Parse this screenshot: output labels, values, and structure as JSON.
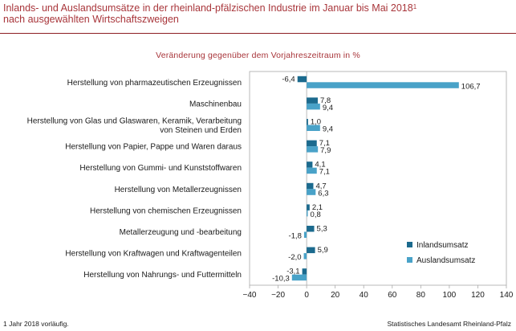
{
  "header": {
    "title_line1": "Inlands- und Auslandsumsätze in der rheinland-pfälzischen Industrie im Januar bis Mai 2018",
    "title_sup": "1",
    "title_line2": "nach ausgewählten Wirtschaftszweigen"
  },
  "footer": {
    "footnote": "1 Jahr 2018 vorläufig.",
    "source": "Statistisches Landesamt Rheinland-Pfalz"
  },
  "colors": {
    "title": "#a8353a",
    "inland": "#1b6a8e",
    "ausland": "#49a2c8"
  },
  "chart_data": {
    "type": "bar",
    "orientation": "horizontal",
    "title": "Veränderung gegenüber dem Vorjahreszeitraum in %",
    "xlim": [
      -40,
      140
    ],
    "xticks": [
      -40,
      -20,
      0,
      20,
      40,
      60,
      80,
      100,
      120,
      140
    ],
    "legend_position": "bottom-right",
    "grid": false,
    "categories": [
      "Herstellung von pharmazeutischen Erzeugnissen",
      "Maschinenbau",
      "Herstellung von Glas und Glaswaren, Keramik, Verarbeitung von Steinen und Erden",
      "Herstellung von Papier, Pappe und Waren daraus",
      "Herstellung von Gummi- und Kunststoffwaren",
      "Herstellung von Metallerzeugnissen",
      "Herstellung von chemischen Erzeugnissen",
      "Metallerzeugung und -bearbeitung",
      "Herstellung von Kraftwagen und Kraftwagenteilen",
      "Herstellung von Nahrungs- und Futtermitteln"
    ],
    "category_lines": [
      [
        "Herstellung von pharmazeutischen Erzeugnissen"
      ],
      [
        "Maschinenbau"
      ],
      [
        "Herstellung von Glas und Glaswaren, Keramik, Verarbeitung",
        "von Steinen und Erden"
      ],
      [
        "Herstellung von Papier, Pappe und Waren daraus"
      ],
      [
        "Herstellung von Gummi- und Kunststoffwaren"
      ],
      [
        "Herstellung von Metallerzeugnissen"
      ],
      [
        "Herstellung von chemischen Erzeugnissen"
      ],
      [
        "Metallerzeugung und -bearbeitung"
      ],
      [
        "Herstellung von Kraftwagen und Kraftwagenteilen"
      ],
      [
        "Herstellung von Nahrungs- und Futtermitteln"
      ]
    ],
    "series": [
      {
        "name": "Inlandsumsatz",
        "values": [
          -6.4,
          7.8,
          1.0,
          7.1,
          4.1,
          4.7,
          2.1,
          5.3,
          5.9,
          -3.1
        ],
        "labels": [
          "-6,4",
          "7,8",
          "1,0",
          "7,1",
          "4,1",
          "4,7",
          "2,1",
          "5,3",
          "5,9",
          "-3,1"
        ]
      },
      {
        "name": "Auslandsumsatz",
        "values": [
          106.7,
          9.4,
          9.4,
          7.9,
          7.1,
          6.3,
          0.8,
          -1.8,
          -2.0,
          -10.3
        ],
        "labels": [
          "106,7",
          "9,4",
          "9,4",
          "7,9",
          "7,1",
          "6,3",
          "0,8",
          "-1,8",
          "-2,0",
          "-10,3"
        ]
      }
    ]
  }
}
